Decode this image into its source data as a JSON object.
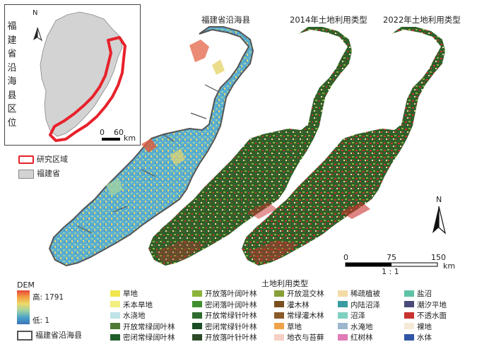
{
  "inset": {
    "vertical_title": [
      "福",
      "建",
      "省",
      "沿",
      "海",
      "县",
      "区",
      "位"
    ],
    "north_label": "N",
    "scale": {
      "zero": "0",
      "value": "60",
      "unit": "km"
    }
  },
  "inset_legend": {
    "study_area_label": "研究区域",
    "study_area_color": "#e8212b",
    "province_label": "福建省",
    "province_color": "#d3d3d3"
  },
  "maps": {
    "title_dem": "福建省沿海县",
    "title_2014": "2014年土地利用类型",
    "title_2022": "2022年土地利用类型"
  },
  "main_north_label": "N",
  "main_scale": {
    "ticks": [
      "0",
      "75",
      "150"
    ],
    "unit": "km",
    "ratio": "1 : 1"
  },
  "dem_legend": {
    "title": "DEM",
    "high_label": "高: 1791",
    "low_label": "低: 1",
    "boundary_label": "福建省沿海县"
  },
  "landuse_legend": {
    "title": "土地利用类型",
    "columns": [
      [
        {
          "label": "旱地",
          "color": "#f0e64f"
        },
        {
          "label": "禾本旱地",
          "color": "#f3ef7e"
        },
        {
          "label": "水浇地",
          "color": "#bfe3e8"
        },
        {
          "label": "开放常绿阔叶林",
          "color": "#4e7a36"
        },
        {
          "label": "密闭常绿阔叶林",
          "color": "#1f5e2a"
        }
      ],
      [
        {
          "label": "开放落叶阔叶林",
          "color": "#8cb33b"
        },
        {
          "label": "密闭落叶阔叶林",
          "color": "#3f8f2f"
        },
        {
          "label": "开放常绿针叶林",
          "color": "#2e6b2e"
        },
        {
          "label": "密闭常绿针叶林",
          "color": "#194d24"
        },
        {
          "label": "开放落叶针叶林",
          "color": "#2d4a26"
        }
      ],
      [
        {
          "label": "开放混交林",
          "color": "#88a038"
        },
        {
          "label": "灌木林",
          "color": "#7a4e1e"
        },
        {
          "label": "常绿灌木林",
          "color": "#8b5a2b"
        },
        {
          "label": "草地",
          "color": "#f0a24a"
        },
        {
          "label": "地衣与苔藓",
          "color": "#f6d0c4"
        }
      ],
      [
        {
          "label": "稀疏植被",
          "color": "#f2dba6"
        },
        {
          "label": "内陆沼泽",
          "color": "#3a9ba0"
        },
        {
          "label": "沼泽",
          "color": "#7fd1bf"
        },
        {
          "label": "水淹地",
          "color": "#9db6cf"
        },
        {
          "label": "红树林",
          "color": "#e07bb5"
        }
      ],
      [
        {
          "label": "盐沼",
          "color": "#5fc2a6"
        },
        {
          "label": "潮汐平地",
          "color": "#4a4a7a"
        },
        {
          "label": "不透水面",
          "color": "#c8322f"
        },
        {
          "label": "裸地",
          "color": "#f6ead6"
        },
        {
          "label": "水体",
          "color": "#2f55a4"
        }
      ]
    ]
  }
}
